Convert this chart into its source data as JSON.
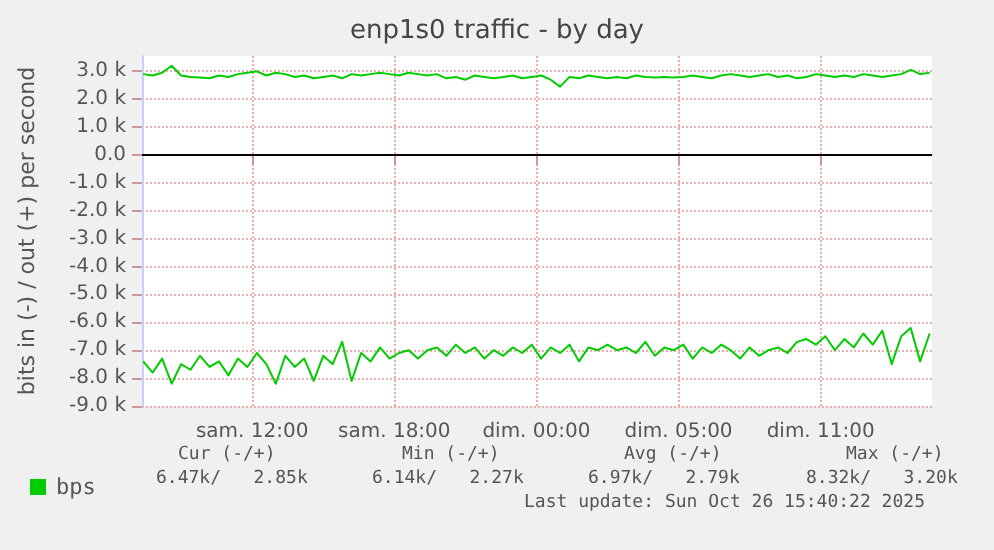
{
  "chart_data": {
    "type": "line",
    "title": "enp1s0 traffic - by day",
    "ylabel": "bits in (-) / out (+) per second",
    "x": [
      "2025-10-25T05:24",
      "2025-10-25T05:48",
      "2025-10-25T06:12",
      "2025-10-25T06:36",
      "2025-10-25T07:00",
      "2025-10-25T07:24",
      "2025-10-25T07:48",
      "2025-10-25T08:12",
      "2025-10-25T08:36",
      "2025-10-25T09:00",
      "2025-10-25T09:24",
      "2025-10-25T09:48",
      "2025-10-25T10:12",
      "2025-10-25T10:36",
      "2025-10-25T11:00",
      "2025-10-25T11:24",
      "2025-10-25T11:48",
      "2025-10-25T12:12",
      "2025-10-25T12:36",
      "2025-10-25T13:00",
      "2025-10-25T13:24",
      "2025-10-25T13:48",
      "2025-10-25T14:12",
      "2025-10-25T14:36",
      "2025-10-25T15:00",
      "2025-10-25T15:24",
      "2025-10-25T15:48",
      "2025-10-25T16:12",
      "2025-10-25T16:36",
      "2025-10-25T17:00",
      "2025-10-25T17:24",
      "2025-10-25T17:48",
      "2025-10-25T18:12",
      "2025-10-25T18:36",
      "2025-10-25T19:00",
      "2025-10-25T19:24",
      "2025-10-25T19:48",
      "2025-10-25T20:12",
      "2025-10-25T20:36",
      "2025-10-25T21:00",
      "2025-10-25T21:24",
      "2025-10-25T21:48",
      "2025-10-25T22:12",
      "2025-10-25T22:36",
      "2025-10-25T23:00",
      "2025-10-25T23:24",
      "2025-10-25T23:48",
      "2025-10-26T00:12",
      "2025-10-26T00:36",
      "2025-10-26T01:00",
      "2025-10-26T01:24",
      "2025-10-26T01:48",
      "2025-10-26T02:12",
      "2025-10-26T02:36",
      "2025-10-26T03:00",
      "2025-10-26T03:24",
      "2025-10-26T03:48",
      "2025-10-26T04:12",
      "2025-10-26T04:36",
      "2025-10-26T05:00",
      "2025-10-26T05:24",
      "2025-10-26T05:48",
      "2025-10-26T06:12",
      "2025-10-26T06:36",
      "2025-10-26T07:00",
      "2025-10-26T07:24",
      "2025-10-26T07:48",
      "2025-10-26T08:12",
      "2025-10-26T08:36",
      "2025-10-26T09:00",
      "2025-10-26T09:24",
      "2025-10-26T09:48",
      "2025-10-26T10:12",
      "2025-10-26T10:36",
      "2025-10-26T11:00",
      "2025-10-26T11:24",
      "2025-10-26T11:48",
      "2025-10-26T12:12",
      "2025-10-26T12:36",
      "2025-10-26T13:00",
      "2025-10-26T13:24",
      "2025-10-26T13:48",
      "2025-10-26T14:12",
      "2025-10-26T14:36"
    ],
    "series": [
      {
        "name": "bps",
        "color": "#00cc00",
        "values": [
          2900,
          2850,
          2950,
          3200,
          2850,
          2800,
          2780,
          2750,
          2850,
          2800,
          2900,
          2950,
          3000,
          2850,
          2950,
          2900,
          2800,
          2850,
          2750,
          2800,
          2850,
          2750,
          2900,
          2850,
          2900,
          2950,
          2900,
          2850,
          2950,
          2900,
          2850,
          2900,
          2750,
          2800,
          2700,
          2850,
          2800,
          2750,
          2800,
          2850,
          2750,
          2800,
          2850,
          2700,
          2450,
          2800,
          2750,
          2850,
          2800,
          2750,
          2800,
          2750,
          2850,
          2800,
          2780,
          2800,
          2780,
          2800,
          2850,
          2800,
          2750,
          2850,
          2900,
          2850,
          2800,
          2850,
          2900,
          2800,
          2850,
          2750,
          2800,
          2900,
          2850,
          2800,
          2850,
          2800,
          2900,
          2850,
          2800,
          2850,
          2900,
          3050,
          2900,
          2950
        ]
      },
      {
        "color": "#00cc00",
        "values": [
          -7400,
          -7800,
          -7300,
          -8200,
          -7500,
          -7700,
          -7200,
          -7600,
          -7400,
          -7900,
          -7300,
          -7600,
          -7100,
          -7500,
          -8200,
          -7200,
          -7600,
          -7300,
          -8100,
          -7200,
          -7500,
          -6700,
          -8100,
          -7100,
          -7400,
          -6900,
          -7300,
          -7100,
          -7000,
          -7300,
          -7000,
          -6900,
          -7200,
          -6800,
          -7100,
          -6900,
          -7300,
          -7000,
          -7200,
          -6900,
          -7100,
          -6800,
          -7300,
          -6900,
          -7100,
          -6800,
          -7400,
          -6900,
          -7000,
          -6800,
          -7000,
          -6900,
          -7100,
          -6700,
          -7200,
          -6900,
          -7000,
          -6800,
          -7300,
          -6900,
          -7100,
          -6800,
          -7000,
          -7300,
          -6900,
          -7200,
          -7000,
          -6900,
          -7100,
          -6700,
          -6600,
          -6800,
          -6500,
          -7000,
          -6600,
          -6900,
          -6400,
          -6800,
          -6300,
          -7500,
          -6500,
          -6200,
          -7400,
          -6400
        ]
      }
    ],
    "xlim": [
      "2025-10-25T05:21",
      "2025-10-26T14:42"
    ],
    "xticks": [
      {
        "value": "2025-10-25T10:00",
        "label": "sam. 12:00"
      },
      {
        "value": "2025-10-25T16:00",
        "label": "sam. 18:00"
      },
      {
        "value": "2025-10-25T22:00",
        "label": "dim. 00:00"
      },
      {
        "value": "2025-10-26T04:00",
        "label": "dim. 05:00"
      },
      {
        "value": "2025-10-26T10:00",
        "label": "dim. 11:00"
      }
    ],
    "ylim": [
      -9000,
      3550
    ],
    "yticks": [
      {
        "value": -9000,
        "label": "-9.0 k"
      },
      {
        "value": -8000,
        "label": "-8.0 k"
      },
      {
        "value": -7000,
        "label": "-7.0 k"
      },
      {
        "value": -6000,
        "label": "-6.0 k"
      },
      {
        "value": -5000,
        "label": "-5.0 k"
      },
      {
        "value": -4000,
        "label": "-4.0 k"
      },
      {
        "value": -3000,
        "label": "-3.0 k"
      },
      {
        "value": -2000,
        "label": "-2.0 k"
      },
      {
        "value": -1000,
        "label": "-1.0 k"
      },
      {
        "value": 0,
        "label": "0.0"
      },
      {
        "value": 1000,
        "label": "1.0 k"
      },
      {
        "value": 2000,
        "label": "2.0 k"
      },
      {
        "value": 3000,
        "label": "3.0 k"
      }
    ],
    "ref_lines": [
      {
        "axis": "y",
        "value": 0,
        "color": "#000000"
      }
    ],
    "grid": true,
    "legend": "bottom left",
    "marker": "none",
    "line_style": "solid",
    "annotations": [
      "Cur (-/+)",
      "Min (-/+)",
      "Avg (-/+)",
      "Max (-/+)",
      "6.47k/   2.85k",
      "6.14k/   2.27k",
      "6.97k/   2.79k",
      "8.32k/   3.20k",
      "Last update: Sun Oct 26 15:40:22 2025"
    ]
  }
}
